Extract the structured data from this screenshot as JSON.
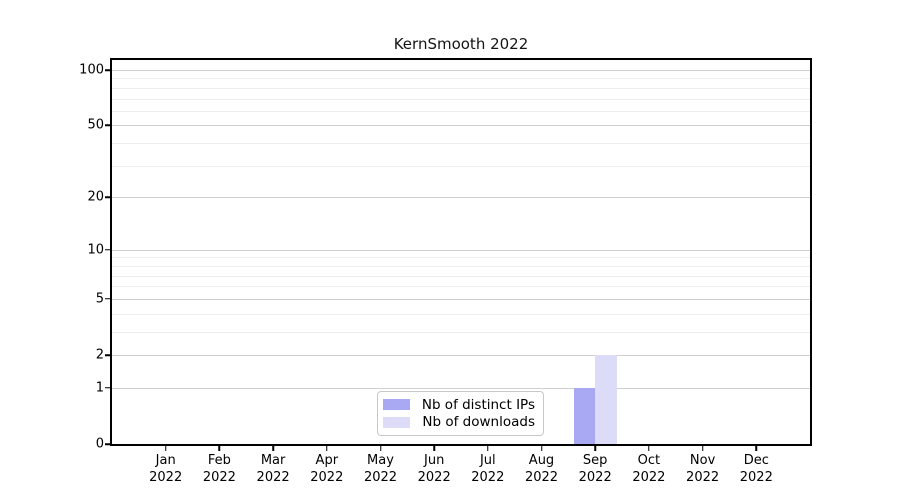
{
  "window": {
    "background": "#ffffff"
  },
  "chart_data": {
    "type": "bar",
    "title": "KernSmooth 2022",
    "categories": [
      "Jan 2022",
      "Feb 2022",
      "Mar 2022",
      "Apr 2022",
      "May 2022",
      "Jun 2022",
      "Jul 2022",
      "Aug 2022",
      "Sep 2022",
      "Oct 2022",
      "Nov 2022",
      "Dec 2022"
    ],
    "series": [
      {
        "name": "Nb of distinct IPs",
        "color": "#a9a9f3",
        "values": [
          0,
          0,
          0,
          0,
          0,
          0,
          0,
          0,
          1,
          0,
          0,
          0
        ]
      },
      {
        "name": "Nb of downloads",
        "color": "#dcdcf9",
        "values": [
          0,
          0,
          0,
          0,
          0,
          0,
          0,
          0,
          2,
          0,
          0,
          0
        ]
      }
    ],
    "xlabel": "",
    "ylabel": "",
    "yscale": "log1p",
    "ylim": [
      0,
      100
    ],
    "yticks": [
      0,
      1,
      2,
      5,
      10,
      20,
      50,
      100
    ],
    "yticks_minor": [
      3,
      4,
      6,
      7,
      8,
      9,
      30,
      40,
      60,
      70,
      80,
      90
    ],
    "grid": "horizontal",
    "legend_position": "inside-bottom-center"
  },
  "legend": {
    "items": [
      {
        "label": "Nb of distinct IPs",
        "color": "#a9a9f3"
      },
      {
        "label": "Nb of downloads",
        "color": "#dcdcf9"
      }
    ]
  },
  "colors": {
    "axis": "#000000",
    "text": "#000000",
    "grid_major": "#cfcfcf",
    "grid_minor": "#ededed",
    "bar_distinct_ips": "#a9a9f3",
    "bar_downloads": "#dcdcf9",
    "legend_border": "#c8c8c8"
  }
}
